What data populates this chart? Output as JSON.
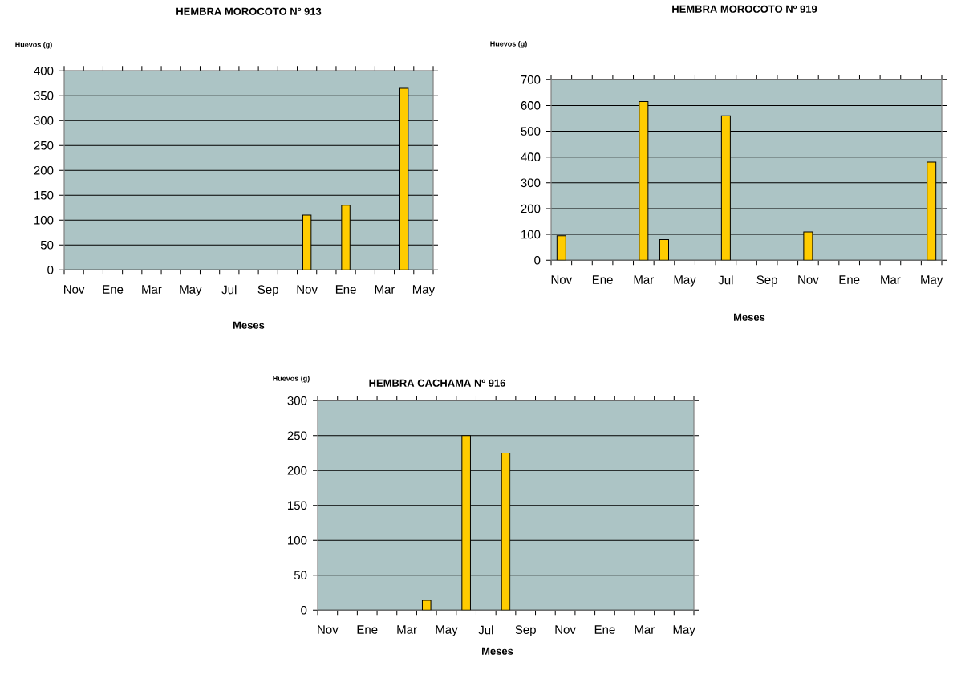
{
  "chart_data": [
    {
      "type": "bar",
      "title": "HEMBRA MOROCOTO Nº 913",
      "xlabel": "Meses",
      "ylabel": "Huevos (g)",
      "categories": [
        "Nov",
        null,
        "Ene",
        null,
        "Mar",
        null,
        "May",
        null,
        "Jul",
        null,
        "Sep",
        null,
        "Nov",
        null,
        "Ene",
        null,
        "Mar",
        null,
        "May"
      ],
      "values": [
        null,
        null,
        null,
        null,
        null,
        null,
        null,
        null,
        null,
        null,
        null,
        null,
        110,
        null,
        130,
        null,
        null,
        365,
        null
      ],
      "color": "#ffcc00",
      "ylim": [
        0,
        400
      ],
      "yticks": [
        0,
        50,
        100,
        150,
        200,
        250,
        300,
        350,
        400
      ],
      "grid": "y"
    },
    {
      "type": "bar",
      "title": "HEMBRA MOROCOTO Nº 919",
      "xlabel": "Meses",
      "ylabel": "Huevos (g)",
      "categories": [
        "Nov",
        null,
        "Ene",
        null,
        "Mar",
        null,
        "May",
        null,
        "Jul",
        null,
        "Sep",
        null,
        "Nov",
        null,
        "Ene",
        null,
        "Mar",
        null,
        "May"
      ],
      "values": [
        95,
        null,
        null,
        null,
        615,
        80,
        null,
        null,
        560,
        null,
        null,
        null,
        110,
        null,
        null,
        null,
        null,
        null,
        380
      ],
      "color": "#ffcc00",
      "ylim": [
        0,
        700
      ],
      "yticks": [
        0,
        100,
        200,
        300,
        400,
        500,
        600,
        700
      ],
      "grid": "y"
    },
    {
      "type": "bar",
      "title": "HEMBRA CACHAMA Nº 916",
      "xlabel": "Meses",
      "ylabel": "Huevos (g)",
      "categories": [
        "Nov",
        null,
        "Ene",
        null,
        "Mar",
        null,
        "May",
        null,
        "Jul",
        null,
        "Sep",
        null,
        "Nov",
        null,
        "Ene",
        null,
        "Mar",
        null,
        "May"
      ],
      "values": [
        null,
        null,
        null,
        null,
        null,
        14,
        null,
        250,
        null,
        225,
        null,
        null,
        null,
        null,
        null,
        null,
        null,
        null,
        null
      ],
      "color": "#ffcc00",
      "ylim": [
        0,
        300
      ],
      "yticks": [
        0,
        50,
        100,
        150,
        200,
        250,
        300
      ],
      "grid": "y"
    }
  ]
}
